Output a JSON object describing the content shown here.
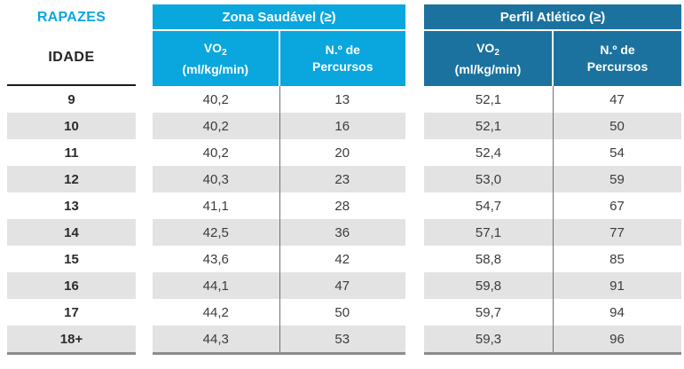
{
  "table": {
    "corner_title": "RAPAZES",
    "age_header": "IDADE",
    "groups": [
      {
        "title": "Zona Saudável (≥)",
        "vo2_main": "VO",
        "vo2_sub": "2",
        "vo2_unit": "(ml/kg/min)",
        "percursos_line1": "N.º de",
        "percursos_line2": "Percursos"
      },
      {
        "title": "Perfil Atlético (≥)",
        "vo2_main": "VO",
        "vo2_sub": "2",
        "vo2_unit": "(ml/kg/min)",
        "percursos_line1": "N.º de",
        "percursos_line2": "Percursos"
      }
    ]
  },
  "colors": {
    "healthy_zone_header": "#0AA6DE",
    "athletic_profile_header": "#1B729E",
    "rapazes_text": "#0AA6DE",
    "row_stripe": "#E3E3E3",
    "bottom_border": "#8C8C8C",
    "idade_underline": "#1A1A1A"
  },
  "chart_data": {
    "type": "table",
    "title": "RAPAZES",
    "row_label": "IDADE",
    "column_groups": [
      "Zona Saudável (≥)",
      "Perfil Atlético (≥)"
    ],
    "columns": [
      "IDADE",
      "Zona Saudável VO2 (ml/kg/min)",
      "Zona Saudável N.º de Percursos",
      "Perfil Atlético VO2 (ml/kg/min)",
      "Perfil Atlético N.º de Percursos"
    ],
    "rows": [
      [
        "9",
        "40,2",
        "13",
        "52,1",
        "47"
      ],
      [
        "10",
        "40,2",
        "16",
        "52,1",
        "50"
      ],
      [
        "11",
        "40,2",
        "20",
        "52,4",
        "54"
      ],
      [
        "12",
        "40,3",
        "23",
        "53,0",
        "59"
      ],
      [
        "13",
        "41,1",
        "28",
        "54,7",
        "67"
      ],
      [
        "14",
        "42,5",
        "36",
        "57,1",
        "77"
      ],
      [
        "15",
        "43,6",
        "42",
        "58,8",
        "85"
      ],
      [
        "16",
        "44,1",
        "47",
        "59,8",
        "91"
      ],
      [
        "17",
        "44,2",
        "50",
        "59,7",
        "94"
      ],
      [
        "18+",
        "44,3",
        "53",
        "59,3",
        "96"
      ]
    ]
  }
}
